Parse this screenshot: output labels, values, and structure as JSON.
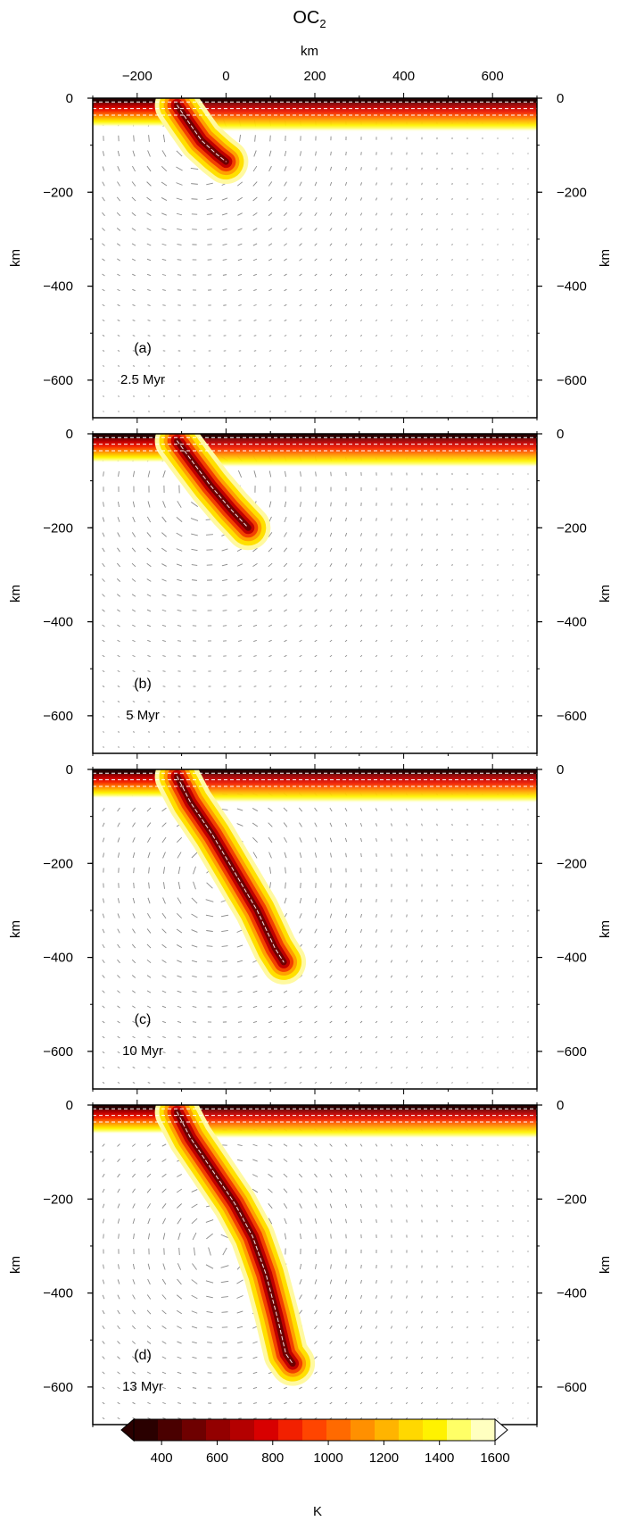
{
  "figure": {
    "title_main": "OC",
    "title_sub": "2",
    "top_axis_label": "km",
    "top_ticks": [
      -200,
      0,
      200,
      400,
      600
    ],
    "colorbar_label": "K"
  },
  "chart_data": [
    {
      "type": "heatmap",
      "panel": "(a)",
      "time_label": "2.5 Myr",
      "xlim": [
        -300,
        700
      ],
      "ylim": [
        -680,
        0
      ],
      "ylabel": "km",
      "y_ticks": [
        0,
        -200,
        -400,
        -600
      ],
      "slab_path": [
        [
          -110,
          -15
        ],
        [
          -85,
          -50
        ],
        [
          -55,
          -90
        ],
        [
          -20,
          -120
        ],
        [
          0,
          -135
        ]
      ],
      "slab_tip_depth_km": -135
    },
    {
      "type": "heatmap",
      "panel": "(b)",
      "time_label": "5 Myr",
      "xlim": [
        -300,
        700
      ],
      "ylim": [
        -680,
        0
      ],
      "ylabel": "km",
      "y_ticks": [
        0,
        -200,
        -400,
        -600
      ],
      "slab_path": [
        [
          -110,
          -15
        ],
        [
          -75,
          -60
        ],
        [
          -35,
          -110
        ],
        [
          10,
          -160
        ],
        [
          50,
          -200
        ]
      ],
      "slab_tip_depth_km": -210
    },
    {
      "type": "heatmap",
      "panel": "(c)",
      "time_label": "10 Myr",
      "xlim": [
        -300,
        700
      ],
      "ylim": [
        -680,
        0
      ],
      "ylabel": "km",
      "y_ticks": [
        0,
        -200,
        -400,
        -600
      ],
      "slab_path": [
        [
          -110,
          -15
        ],
        [
          -80,
          -70
        ],
        [
          -30,
          -140
        ],
        [
          20,
          -220
        ],
        [
          70,
          -300
        ],
        [
          110,
          -380
        ],
        [
          130,
          -410
        ]
      ],
      "slab_tip_depth_km": -420
    },
    {
      "type": "heatmap",
      "panel": "(d)",
      "time_label": "13 Myr",
      "xlim": [
        -300,
        700
      ],
      "ylim": [
        -680,
        0
      ],
      "ylabel": "km",
      "y_ticks": [
        0,
        -200,
        -400,
        -600
      ],
      "slab_path": [
        [
          -110,
          -15
        ],
        [
          -80,
          -70
        ],
        [
          -30,
          -140
        ],
        [
          20,
          -210
        ],
        [
          60,
          -280
        ],
        [
          90,
          -360
        ],
        [
          115,
          -450
        ],
        [
          135,
          -530
        ],
        [
          150,
          -550
        ]
      ],
      "slab_tip_depth_km": -555
    }
  ],
  "colorbar": {
    "type": "colorbar",
    "vmin": 300,
    "vmax": 1600,
    "step": 100,
    "tick_values": [
      400,
      600,
      800,
      1000,
      1200,
      1400,
      1600
    ],
    "colors": [
      "#2a0000",
      "#4a0000",
      "#6e0000",
      "#930000",
      "#b40000",
      "#d80000",
      "#f22000",
      "#ff4500",
      "#ff6a00",
      "#ff9000",
      "#ffb400",
      "#ffd800",
      "#fff200",
      "#ffff66",
      "#ffffc0"
    ]
  }
}
